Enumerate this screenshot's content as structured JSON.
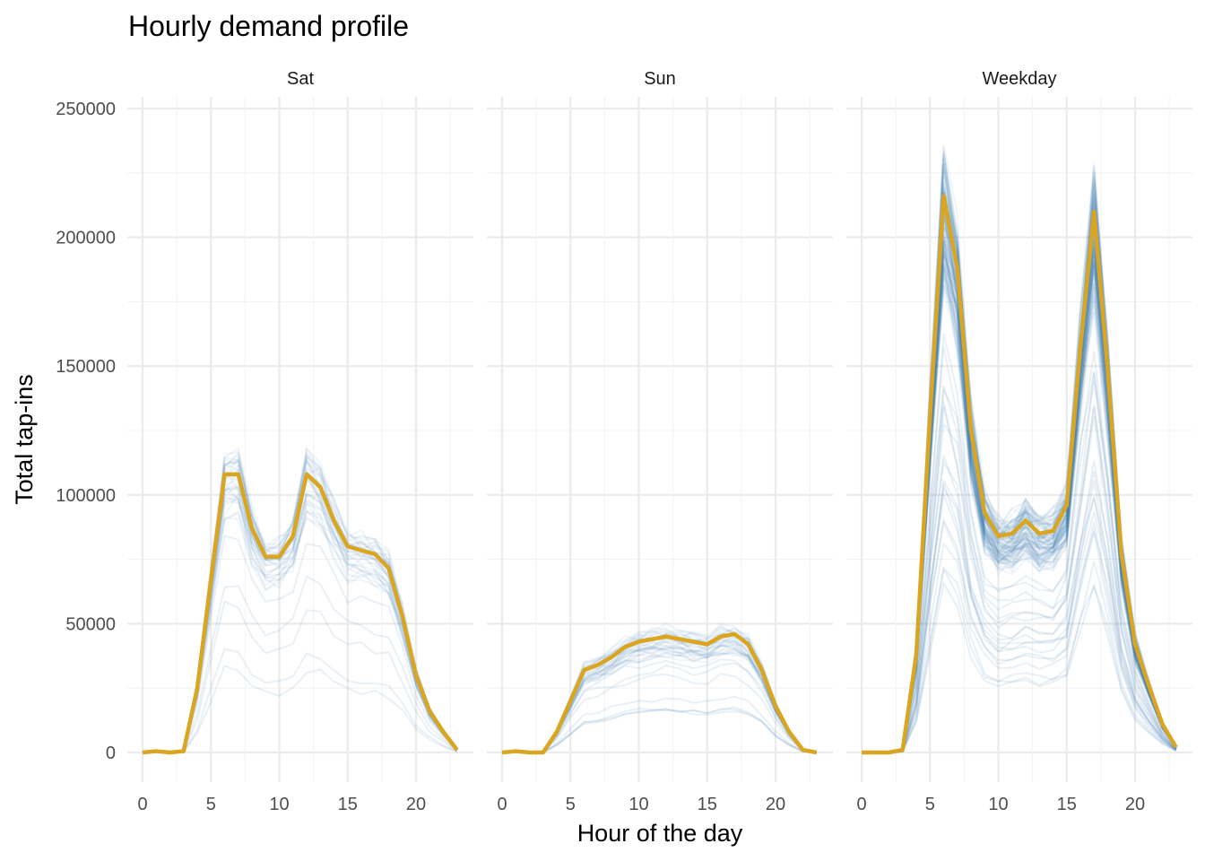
{
  "chart_data": {
    "type": "line",
    "title": "Hourly demand profile",
    "xlabel": "Hour of the day",
    "ylabel": "Total tap-ins",
    "xlim": [
      0,
      23
    ],
    "ylim": [
      0,
      250000
    ],
    "x_ticks": [
      "0",
      "5",
      "10",
      "15",
      "20"
    ],
    "y_ticks": [
      "0",
      "50000",
      "100000",
      "150000",
      "200000",
      "250000"
    ],
    "x": [
      0,
      1,
      2,
      3,
      4,
      5,
      6,
      7,
      8,
      9,
      10,
      11,
      12,
      13,
      14,
      15,
      16,
      17,
      18,
      19,
      20,
      21,
      22,
      23
    ],
    "grid": true,
    "colors": {
      "individual_days": "#4682b4",
      "average": "#daa520"
    },
    "panels": [
      {
        "name": "Sat",
        "average": [
          0,
          500,
          0,
          500,
          25000,
          67000,
          108000,
          108000,
          87000,
          76000,
          76000,
          84000,
          108000,
          103000,
          90000,
          80000,
          78500,
          77000,
          71500,
          53000,
          30000,
          16000,
          8000,
          1000
        ]
      },
      {
        "name": "Sun",
        "average": [
          0,
          500,
          0,
          0,
          8000,
          20000,
          32000,
          34000,
          37000,
          41000,
          43000,
          44000,
          45000,
          44000,
          43000,
          42000,
          45000,
          46000,
          42000,
          32000,
          18000,
          8000,
          1000,
          0
        ]
      },
      {
        "name": "Weekday",
        "average": [
          0,
          0,
          0,
          1000,
          38000,
          130000,
          216000,
          188000,
          125000,
          93000,
          84000,
          85000,
          90000,
          85000,
          86000,
          96000,
          157000,
          210000,
          148000,
          77000,
          42000,
          26000,
          11000,
          2000
        ]
      }
    ]
  }
}
